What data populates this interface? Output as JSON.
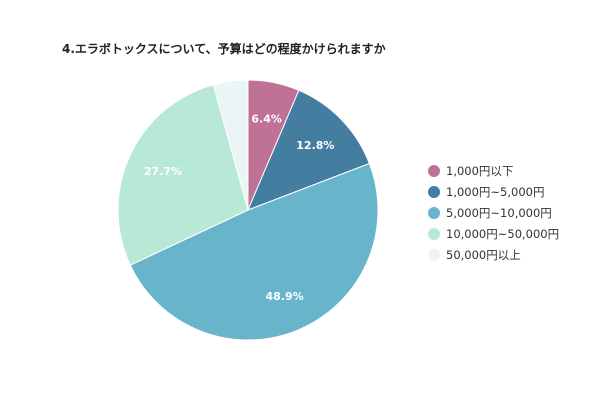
{
  "chart_data": {
    "type": "pie",
    "title": "4.エラボトックスについて、予算はどの程度かけられますか",
    "slices": [
      {
        "label": "1,000円以下",
        "value": 6.4,
        "value_label": "6.4%",
        "color": "#c07296"
      },
      {
        "label": "1,000円~5,000円",
        "value": 12.8,
        "value_label": "12.8%",
        "color": "#437ea1"
      },
      {
        "label": "5,000円~10,000円",
        "value": 48.9,
        "value_label": "48.9%",
        "color": "#68b5cb"
      },
      {
        "label": "10,000円~50,000円",
        "value": 27.7,
        "value_label": "27.7%",
        "color": "#b8e8d6"
      },
      {
        "label": "50,000円以上",
        "value": 4.3,
        "value_label": "",
        "color": "#eaf6f5"
      }
    ],
    "start_angle_deg": 0,
    "direction": "clockwise",
    "legend_position": "right"
  }
}
